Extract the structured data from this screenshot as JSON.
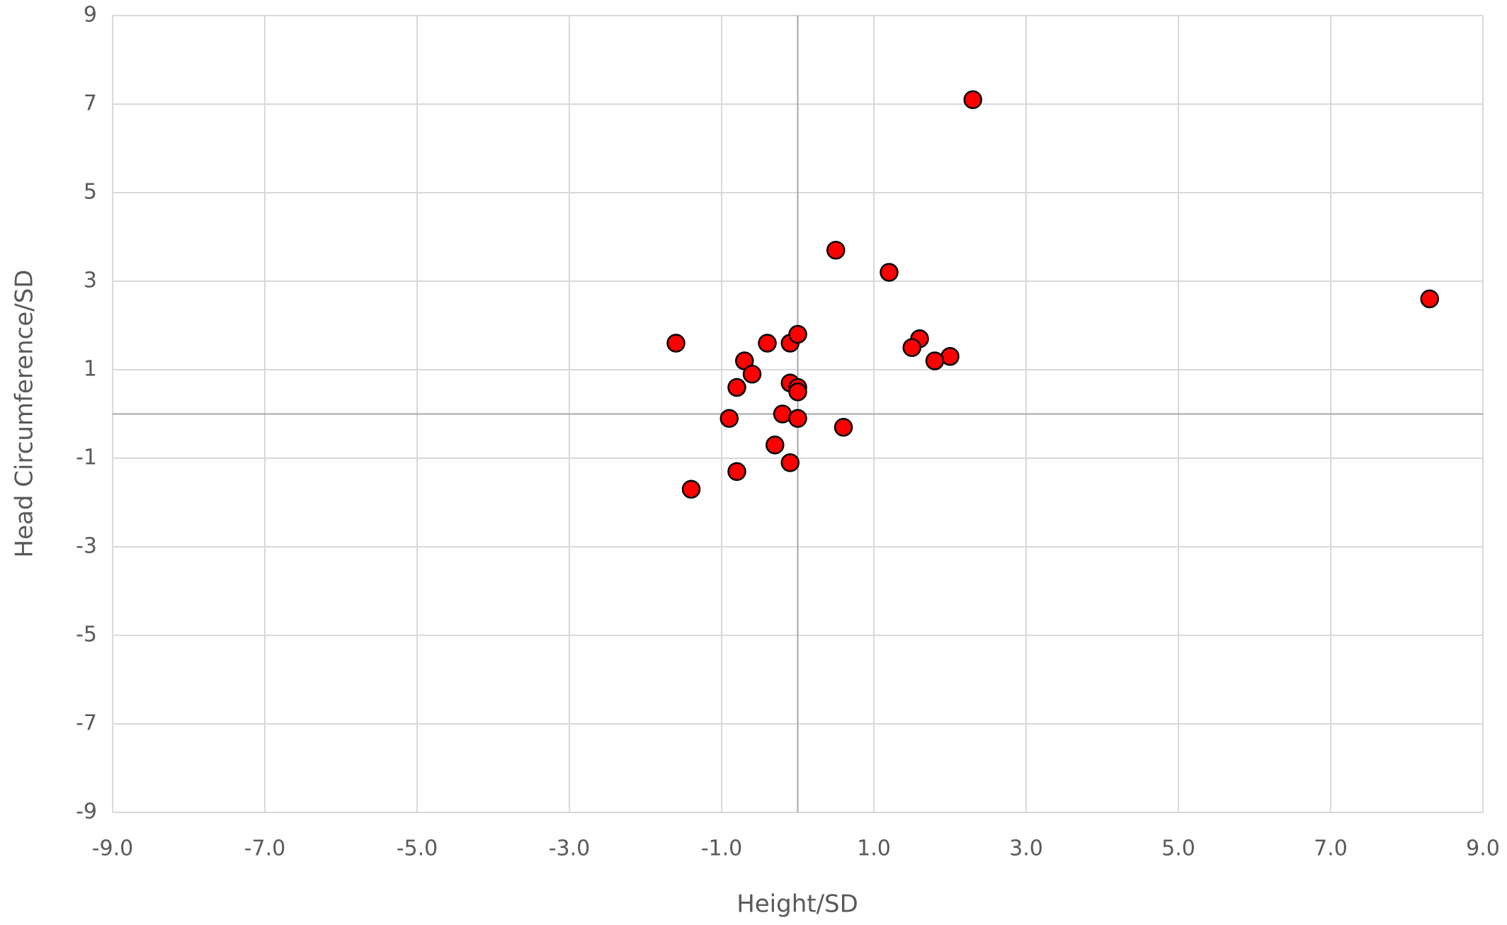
{
  "chart_data": {
    "type": "scatter",
    "x_label": "Height/SD",
    "y_label": "Head Circumference/SD",
    "x": [
      2.3,
      8.3,
      0.5,
      1.2,
      -1.6,
      -0.4,
      -0.1,
      0,
      1.6,
      1.5,
      2.0,
      1.8,
      -0.7,
      -0.6,
      -0.8,
      -0.1,
      0,
      0,
      -0.9,
      -0.2,
      0,
      0.6,
      -0.3,
      -0.1,
      -0.8,
      -1.4
    ],
    "values": [
      7.1,
      2.6,
      3.7,
      3.2,
      1.6,
      1.6,
      1.6,
      1.8,
      1.7,
      1.5,
      1.3,
      1.2,
      1.2,
      0.9,
      0.6,
      0.7,
      0.6,
      0.5,
      -0.1,
      0,
      -0.1,
      -0.3,
      -0.7,
      -1.1,
      -1.3,
      -1.7
    ],
    "color": "#ff0000",
    "xlim": [
      -9,
      9
    ],
    "ylim": [
      -9,
      9
    ],
    "xticks": [
      {
        "value": -9,
        "label": "-9.0"
      },
      {
        "value": -7,
        "label": "-7.0"
      },
      {
        "value": -5,
        "label": "-5.0"
      },
      {
        "value": -3,
        "label": "-3.0"
      },
      {
        "value": -1,
        "label": "-1.0"
      },
      {
        "value": 1,
        "label": "1.0"
      },
      {
        "value": 3,
        "label": "3.0"
      },
      {
        "value": 5,
        "label": "5.0"
      },
      {
        "value": 7,
        "label": "7.0"
      },
      {
        "value": 9,
        "label": "9.0"
      }
    ],
    "yticks": [
      -9,
      -7,
      -5,
      -3,
      -1,
      1,
      3,
      5,
      7,
      9
    ],
    "grid": true
  }
}
